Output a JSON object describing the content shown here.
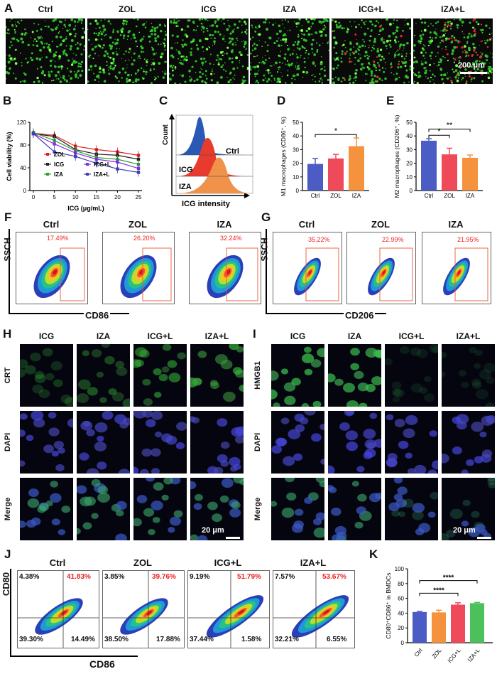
{
  "panelA": {
    "letter": "A",
    "groups": [
      "Ctrl",
      "ZOL",
      "ICG",
      "IZA",
      "ICG+L",
      "IZA+L"
    ],
    "scale_bar": "200 μm"
  },
  "panelB": {
    "letter": "B",
    "chart_data": {
      "type": "line",
      "ylabel": "Cell viability (%)",
      "xlabel": "ICG (μg/mL)",
      "x": [
        0,
        5,
        10,
        15,
        20,
        25
      ],
      "ylim": [
        0,
        120
      ],
      "yticks": [
        0,
        40,
        80,
        120
      ],
      "series": [
        {
          "name": "ZOL",
          "color": "#e02020",
          "values": [
            101,
            97,
            78,
            72,
            68,
            62
          ]
        },
        {
          "name": "ICG",
          "color": "#222222",
          "values": [
            100,
            95,
            72,
            64,
            62,
            55
          ]
        },
        {
          "name": "IZA",
          "color": "#2aa02a",
          "values": [
            102,
            88,
            70,
            58,
            55,
            46
          ]
        },
        {
          "name": "ICG+L",
          "color": "#8a2be2",
          "values": [
            100,
            82,
            66,
            55,
            50,
            39
          ]
        },
        {
          "name": "IZA+L",
          "color": "#3d3db0",
          "values": [
            100,
            68,
            60,
            48,
            38,
            32
          ]
        }
      ]
    }
  },
  "panelC": {
    "letter": "C",
    "ylabel": "Count",
    "xlabel": "ICG intensity",
    "labels": [
      "Ctrl",
      "ICG",
      "IZA"
    ]
  },
  "panelD": {
    "letter": "D",
    "chart_data": {
      "type": "bar",
      "ylabel": "M1 macrophages (CD86⁺, %)",
      "categories": [
        "Ctrl",
        "ZOL",
        "IZA"
      ],
      "values": [
        19.5,
        23.5,
        32.5
      ],
      "errors": [
        4,
        3,
        6
      ],
      "colors": [
        "#4b5cc4",
        "#ee4a5a",
        "#f5923e"
      ],
      "ylim": [
        0,
        50
      ],
      "yticks": [
        0,
        10,
        20,
        30,
        40,
        50
      ],
      "sig": [
        "*"
      ]
    }
  },
  "panelE": {
    "letter": "E",
    "chart_data": {
      "type": "bar",
      "ylabel": "M2 macrophages (CD206⁺, %)",
      "categories": [
        "Ctrl",
        "ZOL",
        "IZA"
      ],
      "values": [
        36.5,
        26.5,
        24
      ],
      "errors": [
        1.5,
        4.5,
        2
      ],
      "colors": [
        "#4b5cc4",
        "#ee4a5a",
        "#f5923e"
      ],
      "ylim": [
        0,
        50
      ],
      "yticks": [
        0,
        10,
        20,
        30,
        40,
        50
      ],
      "sig": [
        "*",
        "**"
      ]
    }
  },
  "panelF": {
    "letter": "F",
    "ylabel": "SSCH",
    "xlabel": "CD86",
    "plots": [
      {
        "title": "Ctrl",
        "pct": "17.49%"
      },
      {
        "title": "ZOL",
        "pct": "26.20%"
      },
      {
        "title": "IZA",
        "pct": "32.24%"
      }
    ]
  },
  "panelG": {
    "letter": "G",
    "ylabel": "SSCH",
    "xlabel": "CD206",
    "plots": [
      {
        "title": "Ctrl",
        "pct": "35.22%"
      },
      {
        "title": "ZOL",
        "pct": "22.99%"
      },
      {
        "title": "IZA",
        "pct": "21.95%"
      }
    ]
  },
  "panelH": {
    "letter": "H",
    "cols": [
      "ICG",
      "IZA",
      "ICG+L",
      "IZA+L"
    ],
    "rows": [
      "CRT",
      "DAPI",
      "Merge"
    ],
    "scale_bar": "20 μm"
  },
  "panelI": {
    "letter": "I",
    "cols": [
      "ICG",
      "IZA",
      "ICG+L",
      "IZA+L"
    ],
    "rows": [
      "HMGB1",
      "DAPI",
      "Merge"
    ],
    "scale_bar": "20 μm"
  },
  "panelJ": {
    "letter": "J",
    "ylabel": "CD80",
    "xlabel": "CD86",
    "plots": [
      {
        "title": "Ctrl",
        "q_ul": "4.38%",
        "q_ur": "41.83%",
        "q_ll": "39.30%",
        "q_lr": "14.49%"
      },
      {
        "title": "ZOL",
        "q_ul": "3.85%",
        "q_ur": "39.76%",
        "q_ll": "38.50%",
        "q_lr": "17.88%"
      },
      {
        "title": "ICG+L",
        "q_ul": "9.19%",
        "q_ur": "51.79%",
        "q_ll": "37.44%",
        "q_lr": "1.58%"
      },
      {
        "title": "IZA+L",
        "q_ul": "7.57%",
        "q_ur": "53.67%",
        "q_ll": "32.21%",
        "q_lr": "6.55%"
      }
    ]
  },
  "panelK": {
    "letter": "K",
    "chart_data": {
      "type": "bar",
      "ylabel": "CD80⁺CD86⁺ in BMDCs",
      "categories": [
        "Ctrl",
        "ZOL",
        "ICG+L",
        "IZA+L"
      ],
      "values": [
        41.5,
        41,
        51.5,
        53.5
      ],
      "errors": [
        1,
        3,
        2.5,
        1
      ],
      "colors": [
        "#4b5cc4",
        "#f5923e",
        "#ee4a5a",
        "#4cc05a"
      ],
      "ylim": [
        0,
        100
      ],
      "yticks": [
        0,
        20,
        40,
        60,
        80,
        100
      ],
      "sig": [
        "****",
        "****"
      ]
    }
  }
}
